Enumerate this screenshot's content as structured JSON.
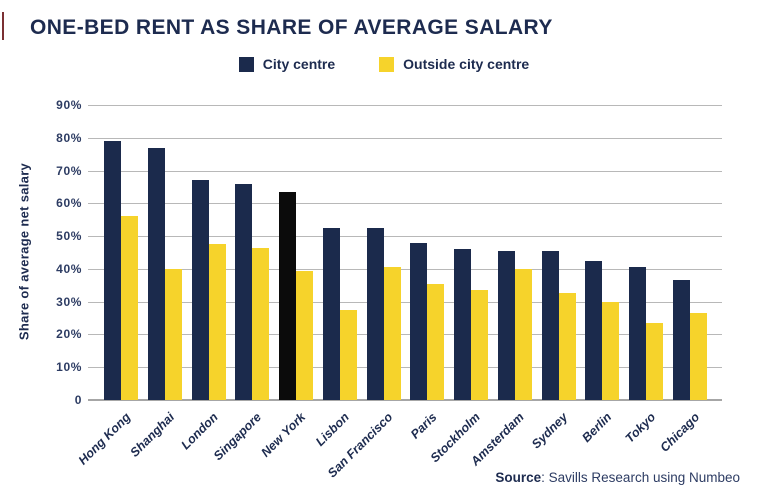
{
  "page": {
    "title": "ONE-BED RENT AS SHARE OF AVERAGE SALARY",
    "source": {
      "label": "Source",
      "text": ": Savills Research using Numbeo"
    }
  },
  "legend": [
    {
      "label": "City centre",
      "color": "#1b2a4c"
    },
    {
      "label": "Outside city centre",
      "color": "#f6d32b"
    }
  ],
  "colors": {
    "title": "#1d2b4f",
    "city_centre_bar": "#1b2a4c",
    "outside_city_centre_bar": "#f6d32b",
    "new_york_highlight_bar": "#0b0b0b",
    "gridline": "#b8b8b8",
    "axis_text": "#2d3c63"
  },
  "chart_data": {
    "type": "bar",
    "title": "ONE-BED RENT AS SHARE OF AVERAGE SALARY",
    "xlabel": "",
    "ylabel": "Share of average net salary",
    "ylim": [
      0,
      90
    ],
    "grid": true,
    "legend_position": "top-center",
    "yticks": [
      {
        "value": 90,
        "label": "90%"
      },
      {
        "value": 80,
        "label": "80%"
      },
      {
        "value": 70,
        "label": "70%"
      },
      {
        "value": 60,
        "label": "60%"
      },
      {
        "value": 50,
        "label": "50%"
      },
      {
        "value": 40,
        "label": "40%"
      },
      {
        "value": 30,
        "label": "30%"
      },
      {
        "value": 20,
        "label": "20%"
      },
      {
        "value": 10,
        "label": "10%"
      },
      {
        "value": 0,
        "label": "0"
      }
    ],
    "categories": [
      "Hong Kong",
      "Shanghai",
      "London",
      "Singapore",
      "New York",
      "Lisbon",
      "San Francisco",
      "Paris",
      "Stockholm",
      "Amsterdam",
      "Sydney",
      "Berlin",
      "Tokyo",
      "Chicago"
    ],
    "series": [
      {
        "name": "City centre",
        "color": "#1b2a4c",
        "values": [
          79,
          77,
          67,
          66,
          63.5,
          52.5,
          52.5,
          48,
          46,
          45.5,
          45.5,
          42.5,
          40.5,
          36.5
        ]
      },
      {
        "name": "Outside city centre",
        "color": "#f6d32b",
        "values": [
          56,
          40,
          47.5,
          46.5,
          39.5,
          27.5,
          40.5,
          35.5,
          33.5,
          40,
          32.5,
          30,
          23.5,
          26.5
        ]
      }
    ],
    "highlight": {
      "category": "New York",
      "series": "City centre",
      "color": "#0b0b0b"
    }
  }
}
